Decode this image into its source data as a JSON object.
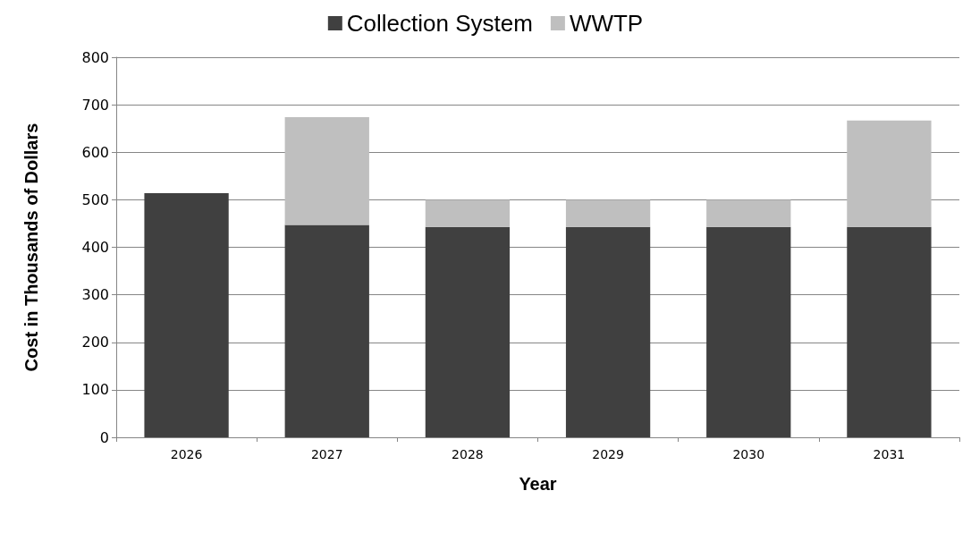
{
  "chart_data": {
    "type": "bar",
    "stacked": true,
    "xlabel": "Year",
    "ylabel": "Cost in Thousands of Dollars",
    "categories": [
      "2026",
      "2027",
      "2028",
      "2029",
      "2030",
      "2031"
    ],
    "series": [
      {
        "name": "Collection System",
        "color": "#404040",
        "values": [
          514,
          447,
          443,
          443,
          443,
          443
        ]
      },
      {
        "name": "WWTP",
        "color": "#bfbfbf",
        "values": [
          0,
          227,
          57,
          57,
          57,
          224
        ]
      }
    ],
    "ylim": [
      0,
      800
    ],
    "yticks": [
      0,
      100,
      200,
      300,
      400,
      500,
      600,
      700,
      800
    ],
    "grid": "y",
    "legend": "top"
  }
}
